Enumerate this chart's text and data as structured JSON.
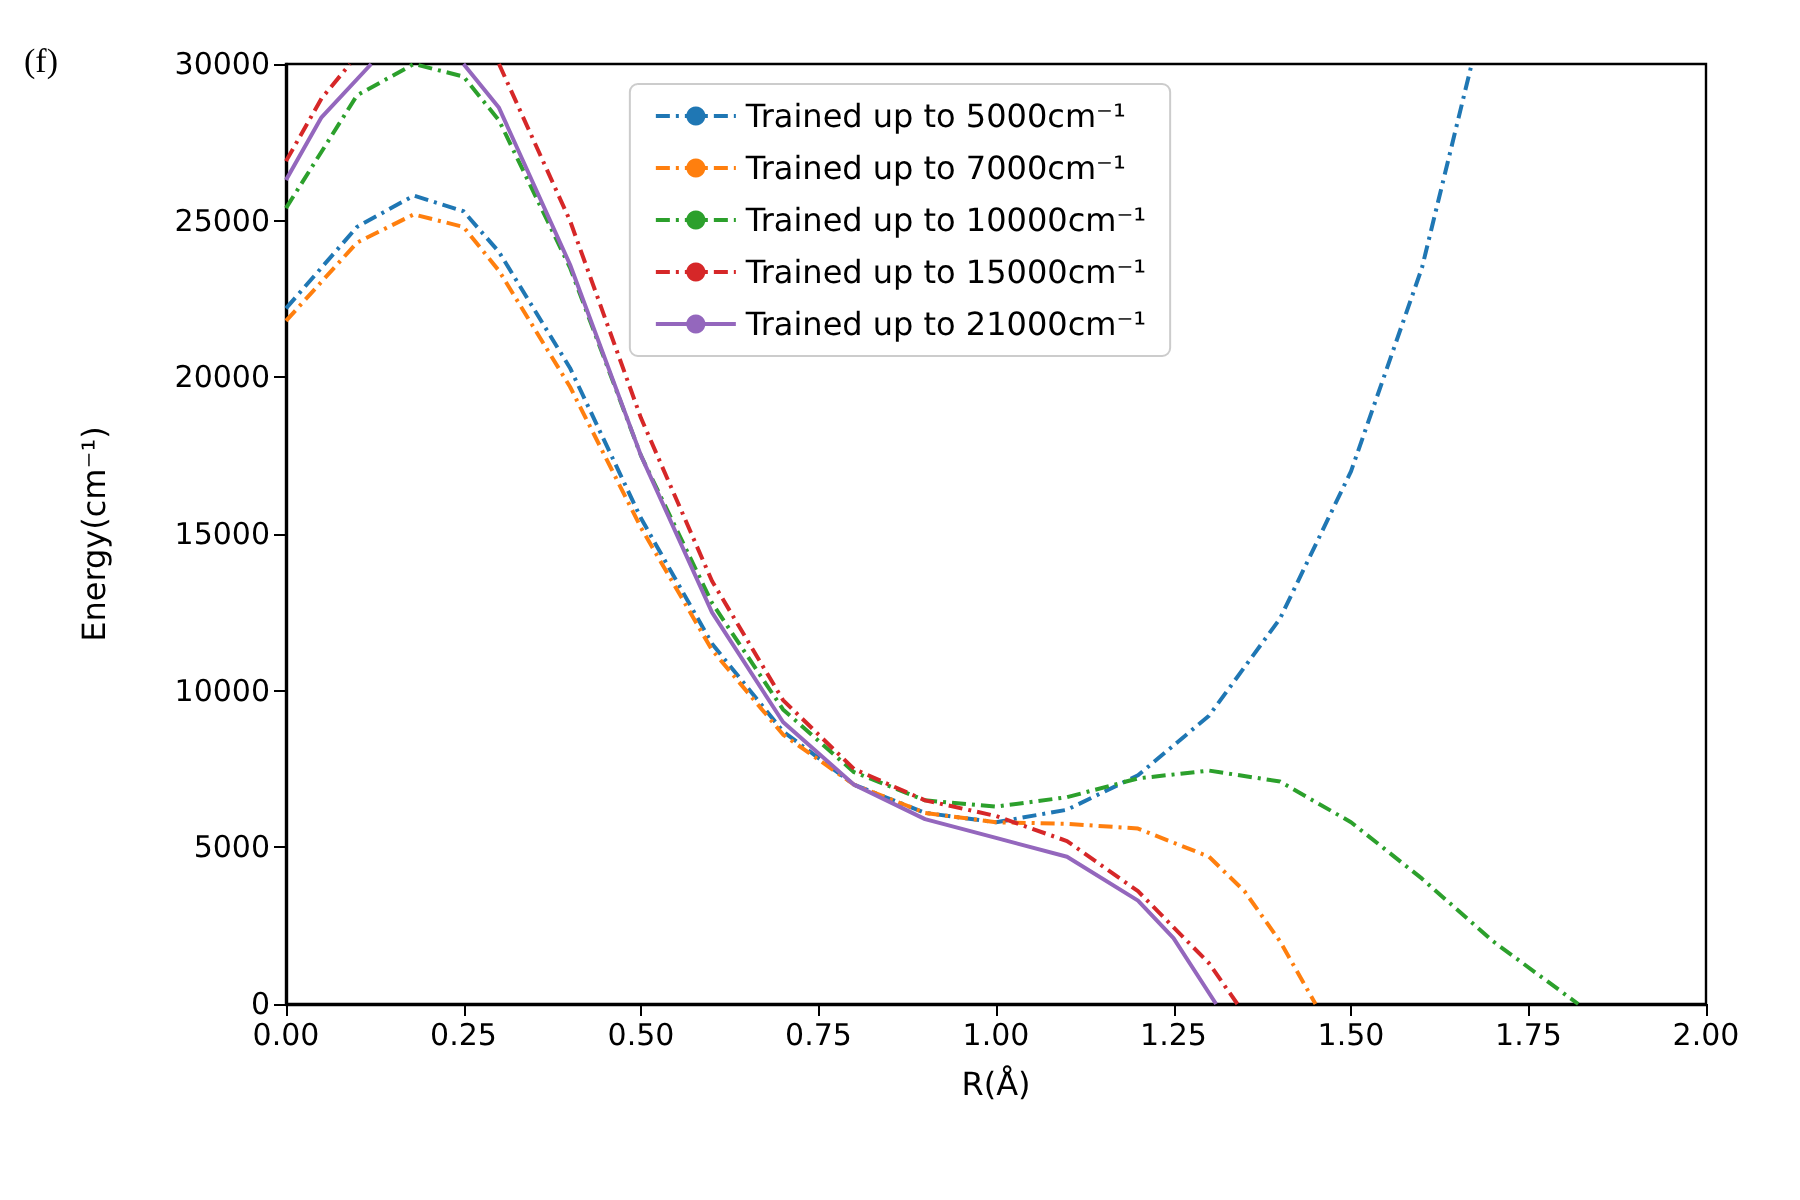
{
  "chart_data": {
    "type": "line",
    "xlabel": "R(Å)",
    "ylabel": "Energy(cm⁻¹)",
    "annotations": [
      "(f)"
    ],
    "xlim": [
      0,
      2
    ],
    "xticks": [
      {
        "value": 0,
        "label": "0.00"
      },
      {
        "value": 0.25,
        "label": "0.25"
      },
      {
        "value": 0.5,
        "label": "0.50"
      },
      {
        "value": 0.75,
        "label": "0.75"
      },
      {
        "value": 1,
        "label": "1.00"
      },
      {
        "value": 1.25,
        "label": "1.25"
      },
      {
        "value": 1.5,
        "label": "1.50"
      },
      {
        "value": 1.75,
        "label": "1.75"
      },
      {
        "value": 2,
        "label": "2.00"
      }
    ],
    "ylim": [
      0,
      30000
    ],
    "yticks": [
      0,
      5000,
      10000,
      15000,
      20000,
      25000,
      30000
    ],
    "grid": false,
    "legend": "top",
    "marker": "none",
    "series": [
      {
        "name": "Trained up to 5000cm⁻¹",
        "color": "#1f77b4",
        "line_style": "dashdot",
        "x": [
          0,
          0.1,
          0.18,
          0.25,
          0.3,
          0.4,
          0.5,
          0.6,
          0.7,
          0.8,
          0.9,
          1.0,
          1.1,
          1.2,
          1.3,
          1.4,
          1.5,
          1.6,
          1.67
        ],
        "values": [
          22200,
          24800,
          25800,
          25300,
          24000,
          20300,
          15500,
          11500,
          8700,
          7000,
          6100,
          5800,
          6200,
          7300,
          9200,
          12300,
          17000,
          23500,
          30000
        ]
      },
      {
        "name": "Trained up to 7000cm⁻¹",
        "color": "#ff7f0e",
        "line_style": "dashdot",
        "x": [
          0,
          0.1,
          0.18,
          0.25,
          0.3,
          0.4,
          0.5,
          0.6,
          0.7,
          0.8,
          0.9,
          1.0,
          1.1,
          1.2,
          1.3,
          1.35,
          1.4,
          1.45
        ],
        "values": [
          21800,
          24300,
          25200,
          24800,
          23400,
          19700,
          15200,
          11300,
          8600,
          7000,
          6100,
          5800,
          5750,
          5600,
          4700,
          3600,
          2000,
          0
        ]
      },
      {
        "name": "Trained up to 10000cm⁻¹",
        "color": "#2ca02c",
        "line_style": "dashdot",
        "x": [
          0,
          0.1,
          0.18,
          0.25,
          0.3,
          0.4,
          0.5,
          0.6,
          0.7,
          0.8,
          0.9,
          1.0,
          1.1,
          1.2,
          1.3,
          1.4,
          1.5,
          1.6,
          1.7,
          1.82
        ],
        "values": [
          25400,
          29000,
          30000,
          29600,
          28200,
          23500,
          17500,
          12800,
          9400,
          7400,
          6500,
          6300,
          6600,
          7200,
          7450,
          7100,
          5800,
          4000,
          2000,
          0
        ]
      },
      {
        "name": "Trained up to 15000cm⁻¹",
        "color": "#d62728",
        "line_style": "dashdot",
        "x": [
          0,
          0.05,
          0.09,
          0.18,
          0.3,
          0.4,
          0.5,
          0.6,
          0.7,
          0.8,
          0.9,
          1.0,
          1.1,
          1.2,
          1.3,
          1.34
        ],
        "values": [
          26900,
          28900,
          30000,
          null,
          30000,
          25000,
          18700,
          13500,
          9700,
          7500,
          6500,
          6000,
          5200,
          3600,
          1300,
          0
        ]
      },
      {
        "name": "Trained up to 21000cm⁻¹",
        "color": "#9467bd",
        "line_style": "solid",
        "x": [
          0,
          0.05,
          0.12,
          0.18,
          0.25,
          0.3,
          0.4,
          0.5,
          0.6,
          0.7,
          0.8,
          0.9,
          1.0,
          1.1,
          1.2,
          1.25,
          1.31
        ],
        "values": [
          26300,
          28300,
          30000,
          null,
          30000,
          28600,
          23600,
          17500,
          12500,
          9000,
          7000,
          5900,
          5300,
          4700,
          3300,
          2100,
          0
        ]
      }
    ]
  }
}
